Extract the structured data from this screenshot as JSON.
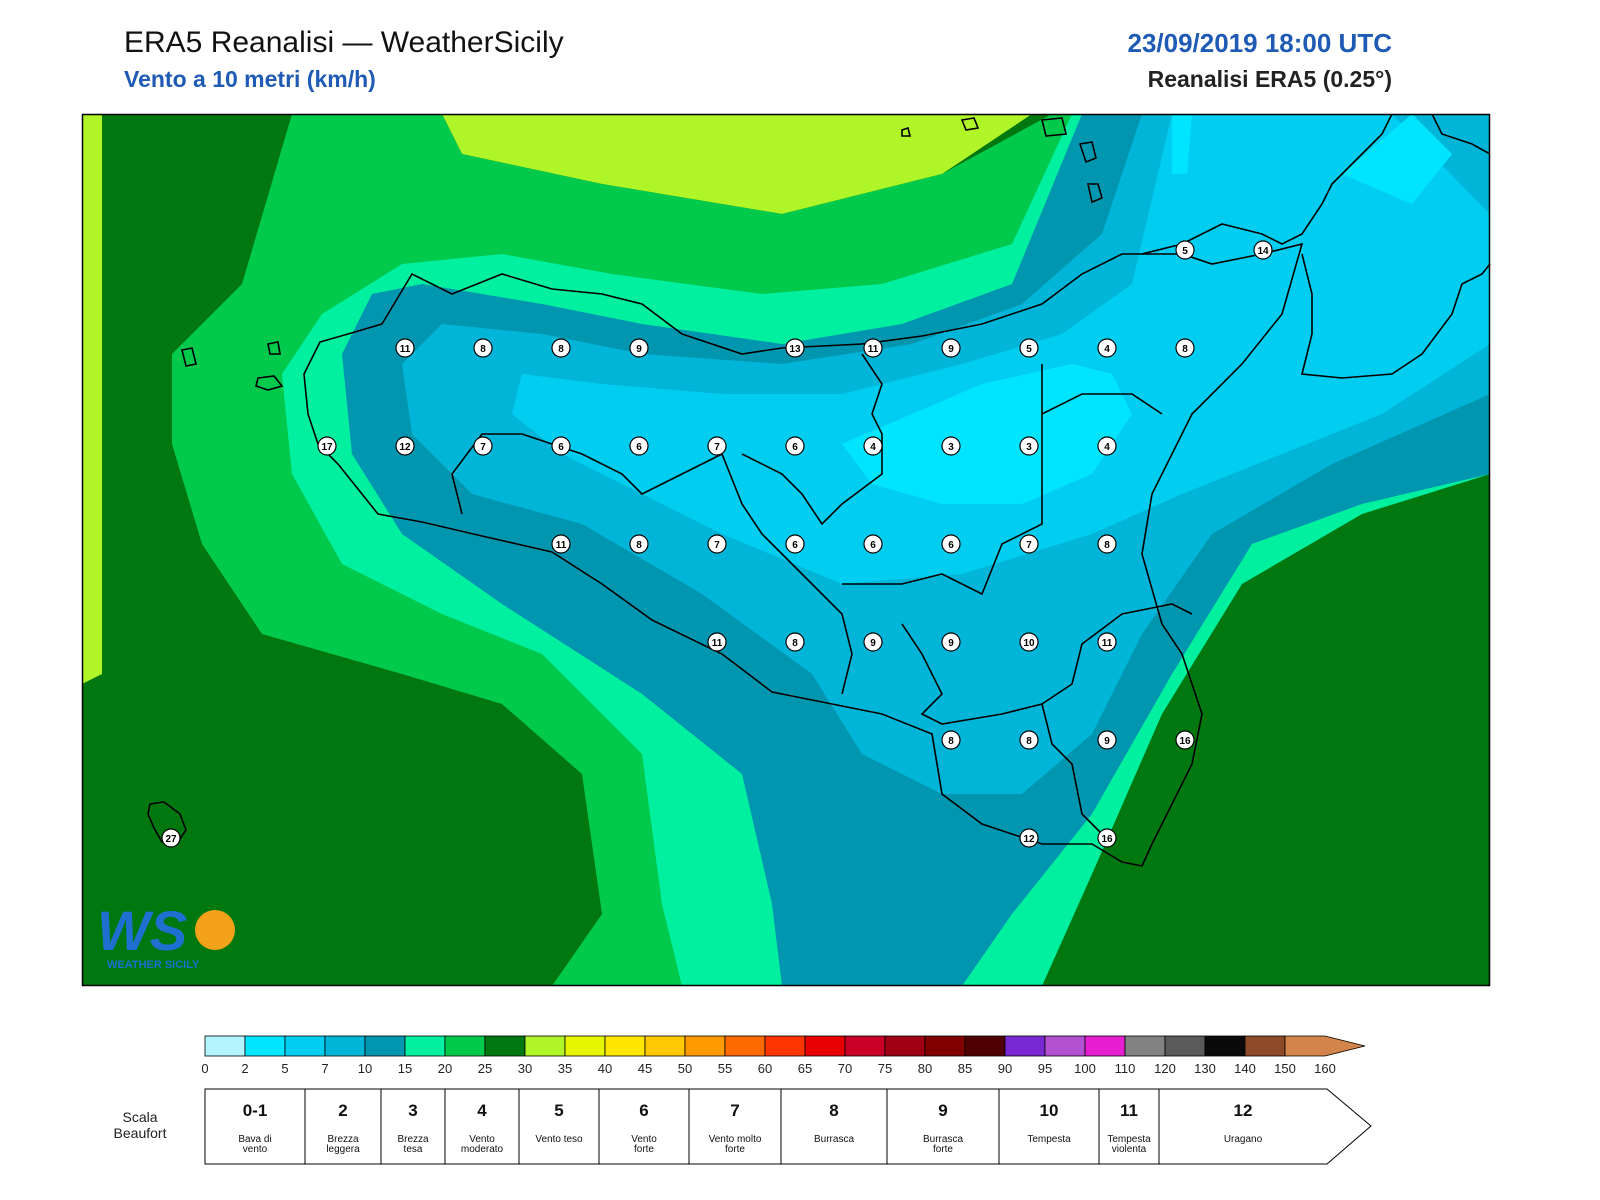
{
  "header": {
    "title": "ERA5 Reanalisi — WeatherSicily",
    "subtitle": "Vento a 10 metri (km/h)",
    "datetime": "23/09/2019 18:00 UTC",
    "resolution": "Reanalisi ERA5 (0.25°)"
  },
  "stations": [
    {
      "label": "5",
      "col": 14,
      "row": 0
    },
    {
      "label": "14",
      "col": 15,
      "row": 0
    },
    {
      "label": "11",
      "col": 4,
      "row": 1
    },
    {
      "label": "8",
      "col": 5,
      "row": 1
    },
    {
      "label": "8",
      "col": 6,
      "row": 1
    },
    {
      "label": "9",
      "col": 7,
      "row": 1
    },
    {
      "label": "13",
      "col": 9,
      "row": 1
    },
    {
      "label": "11",
      "col": 10,
      "row": 1
    },
    {
      "label": "9",
      "col": 11,
      "row": 1
    },
    {
      "label": "5",
      "col": 12,
      "row": 1
    },
    {
      "label": "4",
      "col": 13,
      "row": 1
    },
    {
      "label": "8",
      "col": 14,
      "row": 1
    },
    {
      "label": "17",
      "col": 3,
      "row": 2
    },
    {
      "label": "12",
      "col": 4,
      "row": 2
    },
    {
      "label": "7",
      "col": 5,
      "row": 2
    },
    {
      "label": "6",
      "col": 6,
      "row": 2
    },
    {
      "label": "6",
      "col": 7,
      "row": 2
    },
    {
      "label": "7",
      "col": 8,
      "row": 2
    },
    {
      "label": "6",
      "col": 9,
      "row": 2
    },
    {
      "label": "4",
      "col": 10,
      "row": 2
    },
    {
      "label": "3",
      "col": 11,
      "row": 2
    },
    {
      "label": "3",
      "col": 12,
      "row": 2
    },
    {
      "label": "4",
      "col": 13,
      "row": 2
    },
    {
      "label": "11",
      "col": 6,
      "row": 3
    },
    {
      "label": "8",
      "col": 7,
      "row": 3
    },
    {
      "label": "7",
      "col": 8,
      "row": 3
    },
    {
      "label": "6",
      "col": 9,
      "row": 3
    },
    {
      "label": "6",
      "col": 10,
      "row": 3
    },
    {
      "label": "6",
      "col": 11,
      "row": 3
    },
    {
      "label": "7",
      "col": 12,
      "row": 3
    },
    {
      "label": "8",
      "col": 13,
      "row": 3
    },
    {
      "label": "11",
      "col": 8,
      "row": 4
    },
    {
      "label": "8",
      "col": 9,
      "row": 4
    },
    {
      "label": "9",
      "col": 10,
      "row": 4
    },
    {
      "label": "9",
      "col": 11,
      "row": 4
    },
    {
      "label": "10",
      "col": 12,
      "row": 4
    },
    {
      "label": "11",
      "col": 13,
      "row": 4
    },
    {
      "label": "8",
      "col": 11,
      "row": 5
    },
    {
      "label": "8",
      "col": 12,
      "row": 5
    },
    {
      "label": "9",
      "col": 13,
      "row": 5
    },
    {
      "label": "16",
      "col": 14,
      "row": 5
    },
    {
      "label": "12",
      "col": 12,
      "row": 6
    },
    {
      "label": "16",
      "col": 13,
      "row": 6
    },
    {
      "label": "27",
      "col": 1,
      "row": 6
    }
  ],
  "colorbar": {
    "ticks": [
      "0",
      "2",
      "5",
      "7",
      "10",
      "15",
      "20",
      "25",
      "30",
      "35",
      "40",
      "45",
      "50",
      "55",
      "60",
      "65",
      "70",
      "75",
      "80",
      "85",
      "90",
      "95",
      "100",
      "110",
      "120",
      "130",
      "140",
      "150",
      "160"
    ],
    "colors": [
      "#b3f5ff",
      "#00e5ff",
      "#00cdf0",
      "#00b5d8",
      "#0096b0",
      "#00f0a0",
      "#00c94b",
      "#00780f",
      "#b0f528",
      "#e6f500",
      "#ffe600",
      "#ffc800",
      "#ff9a00",
      "#ff6a00",
      "#ff3500",
      "#e60000",
      "#c80028",
      "#a00014",
      "#800000",
      "#500000",
      "#7a28d2",
      "#b450d2",
      "#e61ed2",
      "#828282",
      "#5a5a5a",
      "#0a0a0a",
      "#8c4a28",
      "#d2844a"
    ]
  },
  "beaufort": {
    "scale_label_1": "Scala",
    "scale_label_2": "Beaufort",
    "classes": [
      {
        "num": "0-1",
        "l1": "Bava di",
        "l2": "vento"
      },
      {
        "num": "2",
        "l1": "Brezza",
        "l2": "leggera"
      },
      {
        "num": "3",
        "l1": "Brezza",
        "l2": "tesa"
      },
      {
        "num": "4",
        "l1": "Vento",
        "l2": "moderato"
      },
      {
        "num": "5",
        "l1": "Vento teso",
        "l2": ""
      },
      {
        "num": "6",
        "l1": "Vento",
        "l2": "forte"
      },
      {
        "num": "7",
        "l1": "Vento molto",
        "l2": "forte"
      },
      {
        "num": "8",
        "l1": "Burrasca",
        "l2": ""
      },
      {
        "num": "9",
        "l1": "Burrasca",
        "l2": "forte"
      },
      {
        "num": "10",
        "l1": "Tempesta",
        "l2": ""
      },
      {
        "num": "11",
        "l1": "Tempesta",
        "l2": "violenta"
      },
      {
        "num": "12",
        "l1": "Uragano",
        "l2": ""
      }
    ]
  },
  "logo": {
    "initials": "WS",
    "text": "WEATHER SICILY"
  }
}
